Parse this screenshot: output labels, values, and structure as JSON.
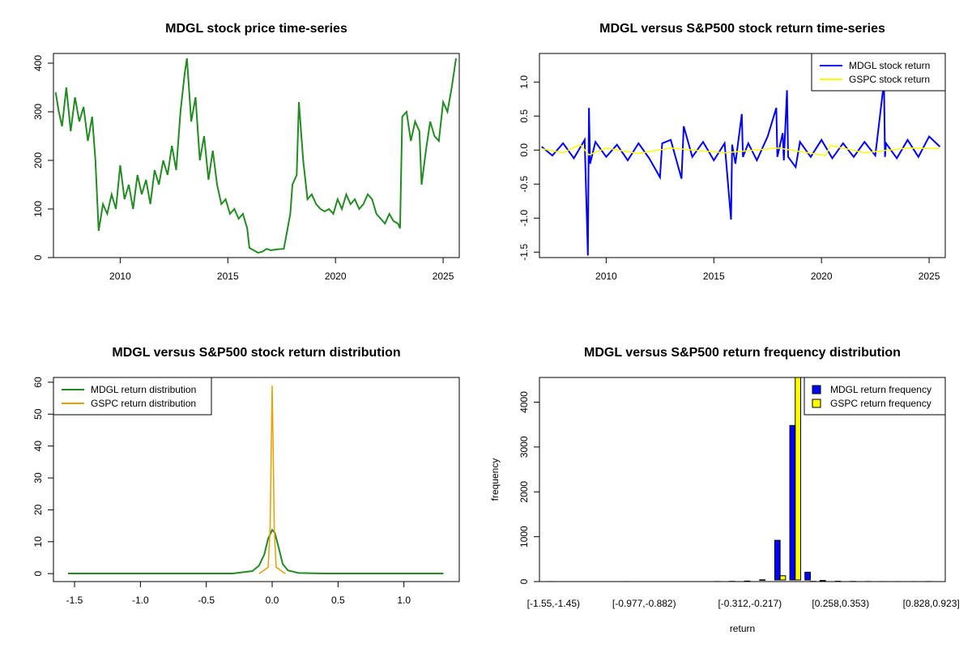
{
  "chart_data": [
    {
      "type": "line",
      "title": "MDGL stock price time-series",
      "xlabel": "",
      "ylabel": "",
      "xlim": [
        2006.9,
        2025.75
      ],
      "ylim": [
        0,
        420
      ],
      "x_ticks": [
        2010,
        2015,
        2020,
        2025
      ],
      "y_ticks": [
        0,
        100,
        200,
        300,
        400
      ],
      "legend": null,
      "grid": false,
      "series": [
        {
          "color": "#228B22",
          "x": [
            2007.0,
            2007.15,
            2007.3,
            2007.5,
            2007.7,
            2007.9,
            2008.1,
            2008.3,
            2008.5,
            2008.7,
            2008.85,
            2009.0,
            2009.2,
            2009.4,
            2009.6,
            2009.8,
            2010.0,
            2010.2,
            2010.4,
            2010.6,
            2010.8,
            2011.0,
            2011.2,
            2011.4,
            2011.6,
            2011.8,
            2012.0,
            2012.2,
            2012.4,
            2012.6,
            2012.8,
            2013.0,
            2013.1,
            2013.3,
            2013.5,
            2013.7,
            2013.9,
            2014.1,
            2014.3,
            2014.5,
            2014.7,
            2014.9,
            2015.1,
            2015.3,
            2015.5,
            2015.7,
            2015.9,
            2016.0,
            2016.2,
            2016.4,
            2016.6,
            2016.8,
            2017.0,
            2017.3,
            2017.6,
            2017.9,
            2018.0,
            2018.2,
            2018.3,
            2018.5,
            2018.7,
            2018.9,
            2019.1,
            2019.3,
            2019.5,
            2019.7,
            2019.9,
            2020.1,
            2020.3,
            2020.5,
            2020.7,
            2020.9,
            2021.1,
            2021.3,
            2021.5,
            2021.7,
            2021.9,
            2022.1,
            2022.3,
            2022.5,
            2022.7,
            2022.9,
            2023.0,
            2023.1,
            2023.3,
            2023.5,
            2023.7,
            2023.9,
            2024.0,
            2024.2,
            2024.4,
            2024.6,
            2024.8,
            2025.0,
            2025.2,
            2025.4,
            2025.6
          ],
          "values": [
            340,
            300,
            270,
            350,
            260,
            330,
            280,
            310,
            240,
            290,
            200,
            55,
            110,
            90,
            130,
            100,
            190,
            120,
            150,
            100,
            170,
            130,
            160,
            110,
            180,
            150,
            200,
            170,
            230,
            180,
            300,
            380,
            410,
            280,
            330,
            200,
            250,
            160,
            220,
            150,
            110,
            120,
            90,
            100,
            80,
            90,
            60,
            20,
            15,
            10,
            12,
            18,
            15,
            17,
            18,
            90,
            150,
            170,
            320,
            200,
            120,
            130,
            110,
            100,
            95,
            100,
            90,
            120,
            100,
            130,
            110,
            120,
            100,
            110,
            130,
            120,
            90,
            80,
            70,
            90,
            75,
            70,
            60,
            290,
            300,
            240,
            280,
            260,
            150,
            220,
            280,
            250,
            240,
            320,
            300,
            350,
            410
          ]
        }
      ]
    },
    {
      "type": "line",
      "title": "MDGL versus S&P500 stock return time-series",
      "xlabel": "",
      "ylabel": "",
      "xlim": [
        2006.9,
        2025.75
      ],
      "ylim": [
        -1.58,
        1.42
      ],
      "x_ticks": [
        2010,
        2015,
        2020,
        2025
      ],
      "y_ticks": [
        -1.5,
        -1.0,
        -0.5,
        0.0,
        0.5,
        1.0
      ],
      "legend": "top-right",
      "grid": false,
      "series": [
        {
          "name": "MDGL stock return",
          "color": "#0000FF",
          "x": [
            2007.0,
            2007.5,
            2008.0,
            2008.5,
            2009.0,
            2009.15,
            2009.2,
            2009.25,
            2009.5,
            2010.0,
            2010.5,
            2011.0,
            2011.5,
            2012.0,
            2012.5,
            2012.6,
            2013.0,
            2013.5,
            2013.6,
            2014.0,
            2014.5,
            2015.0,
            2015.5,
            2015.8,
            2015.85,
            2016.0,
            2016.3,
            2016.35,
            2016.6,
            2017.0,
            2017.5,
            2017.9,
            2017.95,
            2018.2,
            2018.25,
            2018.4,
            2018.45,
            2018.8,
            2019.0,
            2019.5,
            2020.0,
            2020.5,
            2021.0,
            2021.5,
            2022.0,
            2022.5,
            2022.9,
            2022.95,
            2023.0,
            2023.5,
            2024.0,
            2024.5,
            2025.0,
            2025.5
          ],
          "values": [
            0.05,
            -0.08,
            0.1,
            -0.12,
            0.15,
            -1.55,
            0.62,
            -0.2,
            0.12,
            -0.1,
            0.08,
            -0.15,
            0.1,
            -0.12,
            -0.4,
            0.1,
            0.15,
            -0.42,
            0.35,
            -0.1,
            0.12,
            -0.15,
            0.1,
            -1.02,
            0.08,
            -0.2,
            0.53,
            -0.1,
            0.1,
            -0.15,
            0.2,
            0.62,
            -0.1,
            0.25,
            -0.15,
            0.88,
            -0.1,
            -0.25,
            0.12,
            -0.1,
            0.15,
            -0.12,
            0.1,
            -0.1,
            0.12,
            -0.08,
            1.0,
            -0.1,
            0.1,
            -0.12,
            0.15,
            -0.1,
            0.2,
            0.05
          ]
        },
        {
          "name": "GSPC stock return",
          "color": "#FFFF00",
          "x": [
            2007.0,
            2008.0,
            2008.8,
            2009.2,
            2010.0,
            2011.5,
            2013.0,
            2015.5,
            2018.0,
            2020.2,
            2020.4,
            2022.0,
            2024.0,
            2025.5
          ],
          "values": [
            0.02,
            -0.04,
            0.08,
            -0.07,
            0.03,
            -0.05,
            0.03,
            -0.04,
            0.03,
            -0.08,
            0.07,
            -0.04,
            0.03,
            0.02
          ]
        }
      ]
    },
    {
      "type": "line",
      "title": "MDGL versus S&P500 stock return distribution",
      "xlabel": "",
      "ylabel": "",
      "xlim": [
        -1.66,
        1.42
      ],
      "ylim": [
        -2.5,
        61.5
      ],
      "x_ticks": [
        -1.5,
        -1.0,
        -0.5,
        0.0,
        0.5,
        1.0
      ],
      "y_ticks": [
        0,
        10,
        20,
        30,
        40,
        50,
        60
      ],
      "legend": "top-left",
      "grid": false,
      "series": [
        {
          "name": "MDGL return distribution",
          "color": "#228B22",
          "x": [
            -1.55,
            -0.3,
            -0.15,
            -0.1,
            -0.06,
            -0.03,
            0.0,
            0.02,
            0.05,
            0.08,
            0.12,
            0.2,
            0.4,
            1.3
          ],
          "values": [
            0.05,
            0.05,
            0.8,
            2.5,
            6.0,
            11.0,
            13.7,
            12.8,
            8.0,
            3.0,
            1.0,
            0.2,
            0.05,
            0.05
          ]
        },
        {
          "name": "GSPC return distribution",
          "color": "#E8A000",
          "x": [
            -0.1,
            -0.03,
            -0.015,
            -0.007,
            0.0,
            0.007,
            0.015,
            0.03,
            0.1
          ],
          "values": [
            0.0,
            2.0,
            15.0,
            40.0,
            59.0,
            40.0,
            15.0,
            2.0,
            0.0
          ]
        }
      ]
    },
    {
      "type": "bar",
      "title": "MDGL versus S&P500 return frequency distribution",
      "xlabel": "return",
      "ylabel": "frequency",
      "ylim": [
        0,
        4550
      ],
      "y_ticks": [
        0,
        1000,
        2000,
        3000,
        4000
      ],
      "legend": "top-right",
      "grid": false,
      "categories": [
        "[-1.55,-1.45)",
        "[-1.45,-1.36)",
        "[-1.36,-1.26)",
        "[-1.26,-1.17)",
        "[-1.17,-1.07)",
        "[-1.07,-0.977)",
        "[-0.977,-0.882)",
        "[-0.882,-0.787)",
        "[-0.787,-0.692)",
        "[-0.692,-0.597)",
        "[-0.597,-0.502)",
        "[-0.502,-0.407)",
        "[-0.407,-0.312)",
        "[-0.312,-0.217)",
        "[-0.217,-0.122)",
        "[-0.122,-0.027)",
        "[-0.027,0.068)",
        "[0.068,0.163)",
        "[0.163,0.258)",
        "[0.258,0.353)",
        "[0.353,0.448)",
        "[0.448,0.543)",
        "[0.543,0.638)",
        "[0.638,0.733)",
        "[0.733,0.828)",
        "[0.828,0.923]"
      ],
      "label_every": [
        0,
        6,
        13,
        19,
        25
      ],
      "series": [
        {
          "name": "MDGL return frequency",
          "color": "#0000FF",
          "values": [
            1,
            0,
            0,
            0,
            0,
            1,
            0,
            0,
            0,
            0,
            0,
            2,
            5,
            12,
            40,
            920,
            3480,
            210,
            25,
            8,
            4,
            2,
            1,
            1,
            1,
            2
          ]
        },
        {
          "name": "GSPC return frequency",
          "color": "#FFFF00",
          "values": [
            0,
            0,
            0,
            0,
            0,
            0,
            0,
            0,
            0,
            0,
            0,
            0,
            0,
            0,
            0,
            130,
            4560,
            5,
            0,
            0,
            0,
            0,
            0,
            0,
            0,
            0
          ]
        }
      ]
    }
  ]
}
